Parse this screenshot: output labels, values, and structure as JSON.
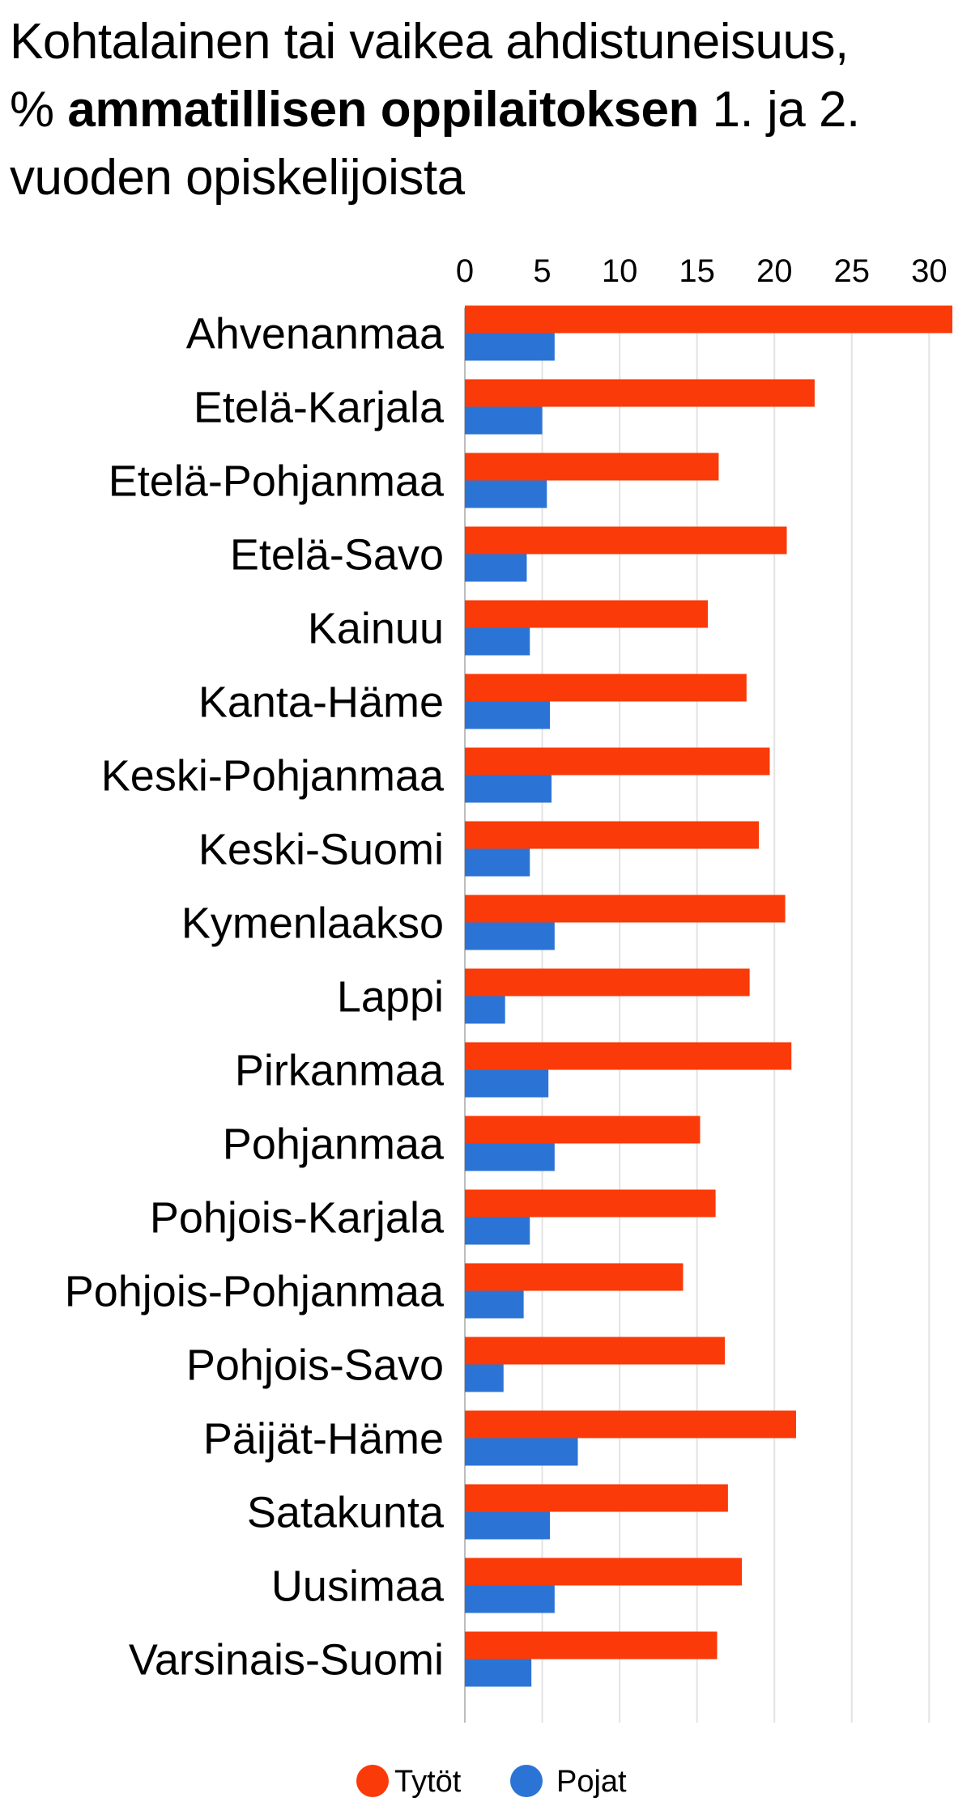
{
  "chart_data": {
    "type": "bar",
    "orientation": "horizontal",
    "title": {
      "line1": "Kohtalainen tai vaikea ahdistuneisuus,",
      "line2_prefix": "%",
      "line2_bold": "ammatillisen oppilaitoksen",
      "line2_suffix": "1. ja 2.",
      "line3": "vuoden opiskelijoista"
    },
    "xlim": [
      0,
      31.5
    ],
    "xticks": [
      0,
      5,
      10,
      15,
      20,
      25,
      30
    ],
    "grid": true,
    "legend_position": "bottom",
    "categories": [
      "Ahvenanmaa",
      "Etelä-Karjala",
      "Etelä-Pohjanmaa",
      "Etelä-Savo",
      "Kainuu",
      "Kanta-Häme",
      "Keski-Pohjanmaa",
      "Keski-Suomi",
      "Kymenlaakso",
      "Lappi",
      "Pirkanmaa",
      "Pohjanmaa",
      "Pohjois-Karjala",
      "Pohjois-Pohjanmaa",
      "Pohjois-Savo",
      "Päijät-Häme",
      "Satakunta",
      "Uusimaa",
      "Varsinais-Suomi"
    ],
    "series": [
      {
        "name": "Tytöt",
        "color": "#fa3a08",
        "values": [
          31.5,
          22.6,
          16.4,
          20.8,
          15.7,
          18.2,
          19.7,
          19.0,
          20.7,
          18.4,
          21.1,
          15.2,
          16.2,
          14.1,
          16.8,
          21.4,
          17.0,
          17.9,
          16.3
        ]
      },
      {
        "name": "Pojat",
        "color": "#2b74d6",
        "values": [
          5.8,
          5.0,
          5.3,
          4.0,
          4.2,
          5.5,
          5.6,
          4.2,
          5.8,
          2.6,
          5.4,
          5.8,
          4.2,
          3.8,
          2.5,
          7.3,
          5.5,
          5.8,
          4.3
        ]
      }
    ]
  }
}
